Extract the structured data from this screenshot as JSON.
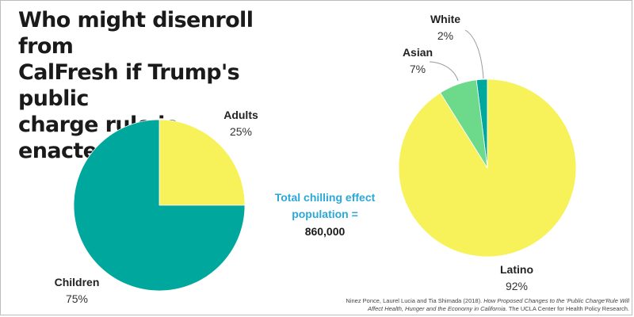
{
  "title_lines": [
    "Who might disenroll from",
    "CalFresh if Trump's public",
    "charge rule is enacted?"
  ],
  "callout": {
    "label_lines": [
      "Total chilling effect",
      "population ="
    ],
    "value": "860,000",
    "label_color": "#2ba7d8"
  },
  "source": {
    "prefix": "Ninez Ponce, Laurel Lucia and Tia Shimada (2018). ",
    "italic": "How Proposed Changes to the 'Public Charge'Rule Will Affect Health, Hunger and the Economy in California",
    "suffix": ". The UCLA Center for Health Policy Research."
  },
  "chart_data": [
    {
      "type": "pie",
      "start_angle_deg": 0,
      "direction": "clockwise",
      "slices": [
        {
          "label": "Adults",
          "value": 25,
          "value_label": "25%",
          "color": "#f7f25a"
        },
        {
          "label": "Children",
          "value": 75,
          "value_label": "75%",
          "color": "#00a79d"
        }
      ]
    },
    {
      "type": "pie",
      "start_angle_deg": 0,
      "direction": "counterclockwise",
      "slices": [
        {
          "label": "White",
          "value": 2,
          "value_label": "2%",
          "color": "#00a79d"
        },
        {
          "label": "Asian",
          "value": 7,
          "value_label": "7%",
          "color": "#6dd98a"
        },
        {
          "label": "Latino",
          "value": 92,
          "value_label": "92%",
          "color": "#f7f25a"
        }
      ]
    }
  ]
}
